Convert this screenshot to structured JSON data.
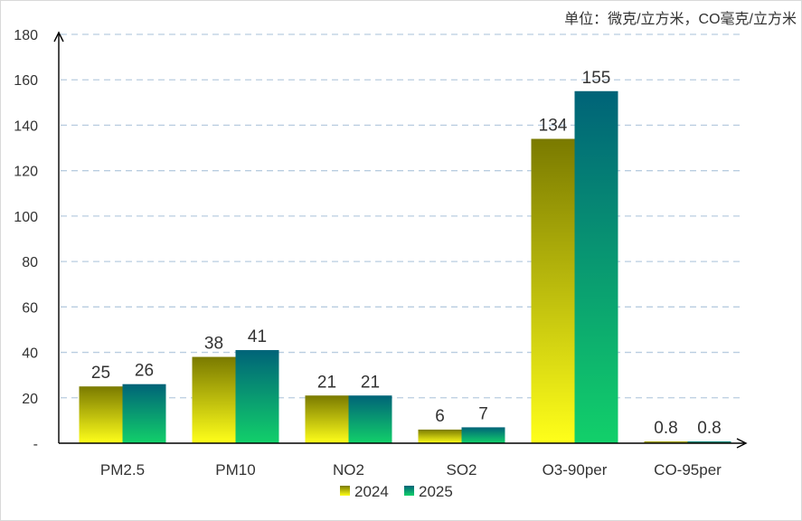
{
  "chart_data": {
    "type": "bar",
    "unit_note": "单位：微克/立方米，CO毫克/立方米",
    "categories": [
      "PM2.5",
      "PM10",
      "NO2",
      "SO2",
      "O3-90per",
      "CO-95per"
    ],
    "series": [
      {
        "name": "2024",
        "values": [
          25,
          38,
          21,
          6,
          134,
          0.8
        ],
        "color_top": "#7a7a00",
        "color_bottom": "#ffff1a"
      },
      {
        "name": "2025",
        "values": [
          26,
          41,
          21,
          7,
          155,
          0.8
        ],
        "color_top": "#006378",
        "color_bottom": "#12d06a"
      }
    ],
    "data_labels": [
      [
        "25",
        "38",
        "21",
        "6",
        "134",
        "0.8"
      ],
      [
        "26",
        "41",
        "21",
        "7",
        "155",
        "0.8"
      ]
    ],
    "ylim": [
      0,
      180
    ],
    "y_ticks": [
      "-",
      "20",
      "40",
      "60",
      "80",
      "100",
      "120",
      "140",
      "160",
      "180"
    ],
    "y_tick_values": [
      0,
      20,
      40,
      60,
      80,
      100,
      120,
      140,
      160,
      180
    ],
    "grid": true,
    "legend_position": "bottom-center",
    "title": "",
    "xlabel": "",
    "ylabel": ""
  }
}
